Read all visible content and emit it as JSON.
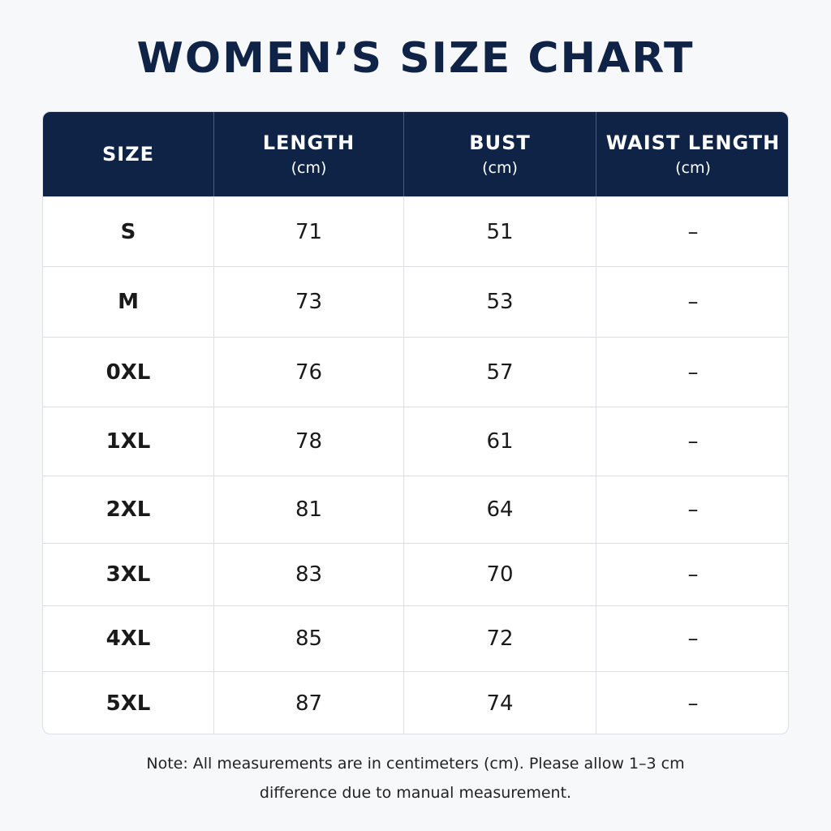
{
  "title": "WOMEN’S SIZE CHART",
  "table": {
    "headers": [
      {
        "label": "SIZE"
      },
      {
        "label": "LENGTH",
        "unit": "(cm)"
      },
      {
        "label": "BUST",
        "unit": "(cm)"
      },
      {
        "label": "WAIST LENGTH",
        "unit": "(cm)"
      }
    ],
    "rows": [
      [
        "S",
        71,
        51,
        "–"
      ],
      [
        "M",
        73,
        53,
        "–"
      ],
      [
        "0XL",
        76,
        57,
        "–"
      ],
      [
        "1XL",
        78,
        61,
        "–"
      ],
      [
        "2XL",
        81,
        64,
        "–"
      ],
      [
        "3XL",
        83,
        70,
        "–"
      ],
      [
        "4XL",
        85,
        72,
        "–"
      ],
      [
        "5XL",
        87,
        74,
        "–"
      ]
    ]
  },
  "note": [
    "Note:  All measurements are in centimeters (cm).  Please allow 1–3 cm",
    "difference due to manual measurement."
  ]
}
